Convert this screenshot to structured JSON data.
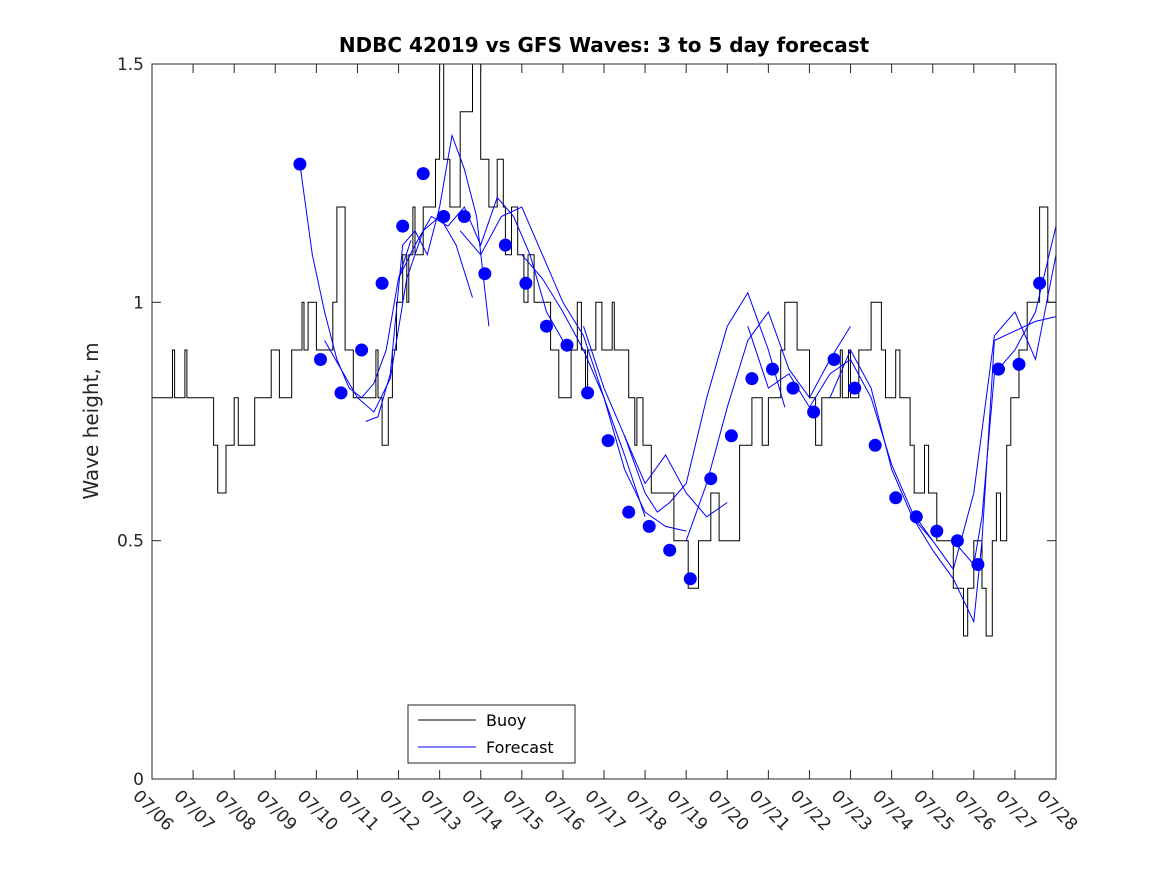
{
  "chart_data": {
    "type": "line",
    "title": "NDBC 42019 vs GFS Waves: 3 to 5 day forecast",
    "ylabel": "Wave height, m",
    "xlabel": "",
    "xlim": [
      0,
      22
    ],
    "ylim": [
      0,
      1.5
    ],
    "x_tick_labels": [
      "07/06",
      "07/07",
      "07/08",
      "07/09",
      "07/10",
      "07/11",
      "07/12",
      "07/13",
      "07/14",
      "07/15",
      "07/16",
      "07/17",
      "07/18",
      "07/19",
      "07/20",
      "07/21",
      "07/22",
      "07/23",
      "07/24",
      "07/25",
      "07/26",
      "07/27",
      "07/28"
    ],
    "y_ticks": [
      0,
      0.5,
      1,
      1.5
    ],
    "y_tick_labels": [
      "0",
      "0.5",
      "1",
      "1.5"
    ],
    "legend": {
      "position": "bottom-left",
      "entries": [
        {
          "name": "Buoy",
          "color": "#000000"
        },
        {
          "name": "Forecast",
          "color": "#0000ff"
        }
      ]
    },
    "colors": {
      "buoy": "#000000",
      "forecast": "#0000ff"
    },
    "series": [
      {
        "name": "Buoy",
        "kind": "step",
        "x": [
          0,
          0.5,
          0.55,
          0.6,
          0.8,
          0.85,
          1.2,
          1.5,
          1.6,
          1.8,
          2.0,
          2.1,
          2.2,
          2.5,
          2.9,
          3.1,
          3.4,
          3.6,
          3.65,
          3.7,
          3.8,
          4.0,
          4.4,
          4.5,
          4.7,
          4.9,
          5.1,
          5.3,
          5.45,
          5.5,
          5.6,
          5.75,
          5.85,
          5.95,
          6.1,
          6.2,
          6.25,
          6.35,
          6.4,
          6.6,
          6.9,
          7.0,
          7.1,
          7.25,
          7.5,
          7.8,
          8.0,
          8.2,
          8.4,
          8.55,
          8.6,
          8.75,
          8.9,
          9.05,
          9.15,
          9.3,
          9.55,
          9.7,
          9.9,
          10.2,
          10.35,
          10.45,
          10.55,
          10.6,
          10.8,
          10.95,
          11.2,
          11.25,
          11.4,
          11.6,
          11.7,
          11.75,
          11.8,
          11.95,
          12.15,
          12.5,
          12.7,
          12.85,
          13.0,
          13.05,
          13.3,
          13.5,
          13.6,
          13.8,
          13.85,
          14.1,
          14.3,
          14.6,
          14.85,
          15.0,
          15.2,
          15.3,
          15.4,
          15.7,
          16.0,
          16.15,
          16.3,
          16.5,
          16.75,
          16.8,
          16.95,
          17.0,
          17.2,
          17.5,
          17.75,
          17.85,
          18.1,
          18.2,
          18.45,
          18.55,
          18.8,
          18.9,
          19.1,
          19.2,
          19.5,
          19.75,
          19.85,
          20.0,
          20.2,
          20.3,
          20.45,
          20.55,
          20.65,
          20.8,
          20.9,
          21.1,
          21.3,
          21.6,
          21.8,
          22.0
        ],
        "y": [
          0.8,
          0.9,
          0.8,
          0.8,
          0.9,
          0.8,
          0.8,
          0.7,
          0.6,
          0.7,
          0.8,
          0.7,
          0.7,
          0.8,
          0.9,
          0.8,
          0.9,
          0.9,
          1.0,
          0.9,
          1.0,
          0.9,
          1.0,
          1.2,
          0.9,
          0.8,
          0.8,
          0.8,
          0.9,
          0.8,
          0.7,
          0.8,
          0.9,
          1.0,
          1.1,
          1.0,
          1.1,
          1.2,
          1.1,
          1.2,
          1.3,
          1.5,
          1.3,
          1.2,
          1.4,
          1.5,
          1.3,
          1.2,
          1.3,
          1.2,
          1.1,
          1.2,
          1.1,
          1.0,
          1.1,
          1.0,
          1.0,
          0.9,
          0.8,
          0.9,
          1.0,
          0.9,
          0.8,
          0.9,
          1.0,
          0.9,
          1.0,
          0.9,
          0.9,
          0.8,
          0.8,
          0.7,
          0.8,
          0.7,
          0.6,
          0.6,
          0.5,
          0.5,
          0.5,
          0.4,
          0.5,
          0.5,
          0.6,
          0.5,
          0.5,
          0.5,
          0.7,
          0.8,
          0.7,
          0.8,
          0.8,
          0.9,
          1.0,
          0.9,
          0.8,
          0.7,
          0.8,
          0.8,
          0.9,
          0.8,
          0.9,
          0.8,
          0.9,
          1.0,
          0.9,
          0.8,
          0.9,
          0.8,
          0.7,
          0.6,
          0.7,
          0.6,
          0.5,
          0.5,
          0.4,
          0.3,
          0.4,
          0.5,
          0.4,
          0.3,
          0.5,
          0.6,
          0.5,
          0.7,
          0.8,
          0.9,
          1.0,
          1.2,
          1.0,
          1.0
        ]
      },
      {
        "name": "Forecast",
        "kind": "lines",
        "lines": [
          {
            "x": [
              3.6,
              3.9,
              4.2,
              4.5,
              4.8,
              5.1,
              5.4,
              5.7,
              6.0,
              6.3
            ],
            "y": [
              1.29,
              1.1,
              0.98,
              0.88,
              0.82,
              0.8,
              0.83,
              0.9,
              1.05,
              1.13
            ]
          },
          {
            "x": [
              4.2,
              4.6,
              5.0,
              5.4,
              5.8,
              6.2,
              6.6,
              7.0,
              7.4,
              7.8
            ],
            "y": [
              0.92,
              0.86,
              0.8,
              0.77,
              0.84,
              1.05,
              1.15,
              1.18,
              1.12,
              1.01
            ]
          },
          {
            "x": [
              5.2,
              5.5,
              5.8,
              6.1,
              6.4,
              6.7,
              7.0,
              7.3,
              7.6,
              7.9,
              8.2
            ],
            "y": [
              0.75,
              0.76,
              0.85,
              1.12,
              1.15,
              1.1,
              1.2,
              1.35,
              1.28,
              1.18,
              0.95
            ]
          },
          {
            "x": [
              6.0,
              6.4,
              6.8,
              7.2,
              7.6,
              8.0,
              8.4,
              8.8,
              9.2,
              9.6,
              10.0
            ],
            "y": [
              1.05,
              1.12,
              1.18,
              1.16,
              1.2,
              1.12,
              1.22,
              1.18,
              1.1,
              0.98,
              0.92
            ]
          },
          {
            "x": [
              7.5,
              8.0,
              8.5,
              9.0,
              9.5,
              10.0,
              10.5,
              11.0,
              11.5,
              12.0
            ],
            "y": [
              1.15,
              1.1,
              1.18,
              1.2,
              1.1,
              1.0,
              0.93,
              0.8,
              0.68,
              0.55
            ]
          },
          {
            "x": [
              9.0,
              9.5,
              10.0,
              10.5,
              11.0,
              11.5,
              12.0,
              12.5,
              13.0
            ],
            "y": [
              1.1,
              1.05,
              0.98,
              0.9,
              0.8,
              0.65,
              0.56,
              0.53,
              0.52
            ]
          },
          {
            "x": [
              10.5,
              11.0,
              11.5,
              12.0,
              12.5,
              13.0,
              13.5,
              14.0
            ],
            "y": [
              0.95,
              0.82,
              0.72,
              0.62,
              0.68,
              0.6,
              0.55,
              0.58
            ]
          },
          {
            "x": [
              11.5,
              12.0,
              12.3,
              12.6,
              13.0,
              13.5,
              14.0,
              14.5,
              15.0,
              15.4
            ],
            "y": [
              0.72,
              0.6,
              0.56,
              0.58,
              0.62,
              0.8,
              0.95,
              1.02,
              0.9,
              0.78
            ]
          },
          {
            "x": [
              13.0,
              13.5,
              14.0,
              14.5,
              15.0,
              15.5,
              16.0,
              16.5,
              17.0
            ],
            "y": [
              0.5,
              0.62,
              0.78,
              0.92,
              0.98,
              0.86,
              0.8,
              0.88,
              0.95
            ]
          },
          {
            "x": [
              14.5,
              15.0,
              15.5,
              16.0,
              16.5,
              17.0,
              17.5,
              18.0,
              18.5,
              19.0
            ],
            "y": [
              0.95,
              0.82,
              0.85,
              0.78,
              0.85,
              0.88,
              0.8,
              0.66,
              0.56,
              0.5
            ]
          },
          {
            "x": [
              16.5,
              17.0,
              17.5,
              18.0,
              18.5,
              19.0,
              19.5,
              20.0,
              20.5,
              21.0,
              21.5,
              22.0
            ],
            "y": [
              0.8,
              0.9,
              0.82,
              0.65,
              0.55,
              0.5,
              0.44,
              0.6,
              0.93,
              0.98,
              0.88,
              1.1
            ]
          },
          {
            "x": [
              18.5,
              19.0,
              19.5,
              20.0,
              20.2,
              20.5,
              21.0,
              21.5,
              22.0
            ],
            "y": [
              0.55,
              0.48,
              0.42,
              0.33,
              0.5,
              0.92,
              0.94,
              0.96,
              0.97
            ]
          },
          {
            "x": [
              19.5,
              20.0,
              20.2,
              20.5,
              21.0,
              21.5,
              22.0
            ],
            "y": [
              0.5,
              0.45,
              0.55,
              0.85,
              0.9,
              0.98,
              1.16
            ]
          }
        ]
      },
      {
        "name": "Forecast points",
        "kind": "markers",
        "x": [
          3.6,
          4.1,
          4.6,
          5.1,
          5.6,
          6.1,
          6.6,
          7.1,
          7.6,
          8.1,
          8.6,
          9.1,
          9.6,
          10.1,
          10.6,
          11.1,
          11.6,
          12.1,
          12.6,
          13.1,
          13.6,
          14.1,
          14.6,
          15.1,
          15.6,
          16.1,
          16.6,
          17.1,
          17.6,
          18.1,
          18.6,
          19.1,
          19.6,
          20.1,
          20.6,
          21.1,
          21.6
        ],
        "y": [
          1.29,
          0.88,
          0.81,
          0.9,
          1.04,
          1.16,
          1.27,
          1.18,
          1.18,
          1.06,
          1.12,
          1.04,
          0.95,
          0.91,
          0.81,
          0.71,
          0.56,
          0.53,
          0.48,
          0.42,
          0.63,
          0.72,
          0.84,
          0.86,
          0.82,
          0.77,
          0.88,
          0.82,
          0.7,
          0.59,
          0.55,
          0.52,
          0.5,
          0.45,
          0.86,
          0.87,
          1.04
        ]
      }
    ]
  }
}
